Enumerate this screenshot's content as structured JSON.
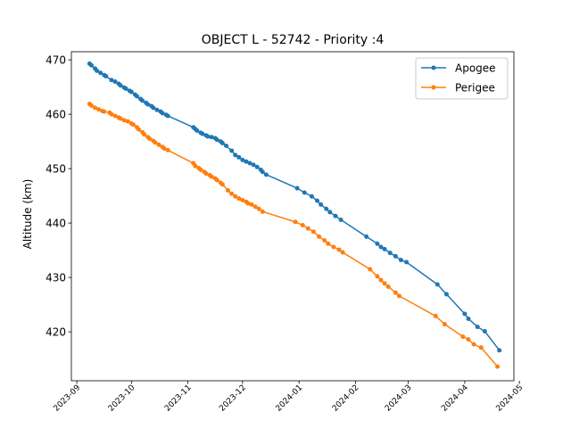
{
  "chart_data": {
    "type": "line",
    "title": "OBJECT L - 52742 - Priority :4",
    "xlabel": "",
    "ylabel": "Altitude (km)",
    "x_axis": "date",
    "xlim": [
      "2023-08-29",
      "2024-04-28"
    ],
    "ylim": [
      411,
      471.5
    ],
    "x_ticks": [
      "2023-09",
      "2023-10",
      "2023-11",
      "2023-12",
      "2024-01",
      "2024-02",
      "2024-03",
      "2024-04",
      "2024-05"
    ],
    "y_ticks": [
      420,
      430,
      440,
      450,
      460,
      470
    ],
    "grid": false,
    "legend": "top-right",
    "series": [
      {
        "name": "Apogee",
        "color": "#1f77b4",
        "points": [
          [
            "2023-09-08",
            469.3
          ],
          [
            "2023-09-09",
            469.0
          ],
          [
            "2023-09-11",
            468.4
          ],
          [
            "2023-09-12",
            468.0
          ],
          [
            "2023-09-14",
            467.6
          ],
          [
            "2023-09-16",
            467.2
          ],
          [
            "2023-09-17",
            467.0
          ],
          [
            "2023-09-20",
            466.3
          ],
          [
            "2023-09-22",
            466.0
          ],
          [
            "2023-09-24",
            465.6
          ],
          [
            "2023-09-25",
            465.3
          ],
          [
            "2023-09-27",
            464.9
          ],
          [
            "2023-09-28",
            464.7
          ],
          [
            "2023-09-30",
            464.3
          ],
          [
            "2023-10-01",
            464.1
          ],
          [
            "2023-10-03",
            463.6
          ],
          [
            "2023-10-04",
            463.3
          ],
          [
            "2023-10-06",
            462.8
          ],
          [
            "2023-10-07",
            462.5
          ],
          [
            "2023-10-09",
            462.1
          ],
          [
            "2023-10-10",
            461.8
          ],
          [
            "2023-10-12",
            461.5
          ],
          [
            "2023-10-13",
            461.2
          ],
          [
            "2023-10-15",
            460.8
          ],
          [
            "2023-10-17",
            460.5
          ],
          [
            "2023-10-18",
            460.2
          ],
          [
            "2023-10-20",
            459.9
          ],
          [
            "2023-10-21",
            459.7
          ],
          [
            "2023-11-04",
            457.6
          ],
          [
            "2023-11-05",
            457.3
          ],
          [
            "2023-11-06",
            457.0
          ],
          [
            "2023-11-08",
            456.6
          ],
          [
            "2023-11-09",
            456.4
          ],
          [
            "2023-11-11",
            456.1
          ],
          [
            "2023-11-12",
            455.9
          ],
          [
            "2023-11-14",
            455.8
          ],
          [
            "2023-11-16",
            455.6
          ],
          [
            "2023-11-17",
            455.3
          ],
          [
            "2023-11-19",
            455.0
          ],
          [
            "2023-11-20",
            454.7
          ],
          [
            "2023-11-22",
            454.2
          ],
          [
            "2023-11-25",
            453.3
          ],
          [
            "2023-11-27",
            452.5
          ],
          [
            "2023-11-29",
            452.1
          ],
          [
            "2023-12-01",
            451.6
          ],
          [
            "2023-12-03",
            451.3
          ],
          [
            "2023-12-05",
            451.0
          ],
          [
            "2023-12-07",
            450.7
          ],
          [
            "2023-12-09",
            450.3
          ],
          [
            "2023-12-11",
            449.8
          ],
          [
            "2023-12-12",
            449.4
          ],
          [
            "2023-12-14",
            448.9
          ],
          [
            "2023-12-31",
            446.4
          ],
          [
            "2024-01-04",
            445.6
          ],
          [
            "2024-01-08",
            444.9
          ],
          [
            "2024-01-11",
            444.1
          ],
          [
            "2024-01-13",
            443.4
          ],
          [
            "2024-01-16",
            442.6
          ],
          [
            "2024-01-18",
            442.0
          ],
          [
            "2024-01-21",
            441.3
          ],
          [
            "2024-01-24",
            440.6
          ],
          [
            "2024-02-07",
            437.5
          ],
          [
            "2024-02-13",
            436.2
          ],
          [
            "2024-02-15",
            435.6
          ],
          [
            "2024-02-17",
            435.2
          ],
          [
            "2024-02-20",
            434.5
          ],
          [
            "2024-02-23",
            433.9
          ],
          [
            "2024-02-26",
            433.2
          ],
          [
            "2024-02-29",
            432.8
          ],
          [
            "2024-03-17",
            428.7
          ],
          [
            "2024-03-22",
            426.9
          ],
          [
            "2024-04-01",
            423.3
          ],
          [
            "2024-04-03",
            422.4
          ],
          [
            "2024-04-08",
            420.9
          ],
          [
            "2024-04-12",
            420.1
          ],
          [
            "2024-04-20",
            416.6
          ]
        ]
      },
      {
        "name": "Perigee",
        "color": "#ff7f0e",
        "points": [
          [
            "2023-09-08",
            461.9
          ],
          [
            "2023-09-09",
            461.6
          ],
          [
            "2023-09-11",
            461.2
          ],
          [
            "2023-09-13",
            460.9
          ],
          [
            "2023-09-15",
            460.6
          ],
          [
            "2023-09-16",
            460.5
          ],
          [
            "2023-09-19",
            460.3
          ],
          [
            "2023-09-20",
            460.0
          ],
          [
            "2023-09-22",
            459.7
          ],
          [
            "2023-09-24",
            459.4
          ],
          [
            "2023-09-25",
            459.2
          ],
          [
            "2023-09-27",
            458.9
          ],
          [
            "2023-09-29",
            458.7
          ],
          [
            "2023-10-01",
            458.3
          ],
          [
            "2023-10-02",
            458.1
          ],
          [
            "2023-10-04",
            457.6
          ],
          [
            "2023-10-05",
            457.2
          ],
          [
            "2023-10-07",
            456.7
          ],
          [
            "2023-10-08",
            456.3
          ],
          [
            "2023-10-10",
            455.8
          ],
          [
            "2023-10-11",
            455.5
          ],
          [
            "2023-10-13",
            455.1
          ],
          [
            "2023-10-14",
            454.8
          ],
          [
            "2023-10-16",
            454.4
          ],
          [
            "2023-10-18",
            454.0
          ],
          [
            "2023-10-19",
            453.7
          ],
          [
            "2023-10-21",
            453.4
          ],
          [
            "2023-11-04",
            451.0
          ],
          [
            "2023-11-05",
            450.5
          ],
          [
            "2023-11-07",
            450.1
          ],
          [
            "2023-11-08",
            449.8
          ],
          [
            "2023-11-10",
            449.4
          ],
          [
            "2023-11-11",
            449.1
          ],
          [
            "2023-11-13",
            448.8
          ],
          [
            "2023-11-14",
            448.5
          ],
          [
            "2023-11-16",
            448.2
          ],
          [
            "2023-11-17",
            447.9
          ],
          [
            "2023-11-19",
            447.4
          ],
          [
            "2023-11-20",
            447.1
          ],
          [
            "2023-11-23",
            446.0
          ],
          [
            "2023-11-25",
            445.4
          ],
          [
            "2023-11-27",
            444.9
          ],
          [
            "2023-11-29",
            444.5
          ],
          [
            "2023-12-01",
            444.2
          ],
          [
            "2023-12-03",
            443.9
          ],
          [
            "2023-12-04",
            443.6
          ],
          [
            "2023-12-06",
            443.4
          ],
          [
            "2023-12-08",
            443.0
          ],
          [
            "2023-12-10",
            442.6
          ],
          [
            "2023-12-12",
            442.1
          ],
          [
            "2023-12-30",
            440.2
          ],
          [
            "2024-01-03",
            439.6
          ],
          [
            "2024-01-06",
            439.0
          ],
          [
            "2024-01-09",
            438.4
          ],
          [
            "2024-01-12",
            437.5
          ],
          [
            "2024-01-15",
            436.8
          ],
          [
            "2024-01-17",
            436.2
          ],
          [
            "2024-01-20",
            435.6
          ],
          [
            "2024-01-23",
            435.1
          ],
          [
            "2024-01-25",
            434.6
          ],
          [
            "2024-02-09",
            431.5
          ],
          [
            "2024-02-13",
            430.2
          ],
          [
            "2024-02-15",
            429.5
          ],
          [
            "2024-02-17",
            428.9
          ],
          [
            "2024-02-19",
            428.3
          ],
          [
            "2024-02-23",
            427.2
          ],
          [
            "2024-02-25",
            426.6
          ],
          [
            "2024-03-16",
            422.9
          ],
          [
            "2024-03-21",
            421.4
          ],
          [
            "2024-03-31",
            419.1
          ],
          [
            "2024-04-03",
            418.6
          ],
          [
            "2024-04-06",
            417.7
          ],
          [
            "2024-04-10",
            417.1
          ],
          [
            "2024-04-19",
            413.6
          ]
        ]
      }
    ]
  }
}
